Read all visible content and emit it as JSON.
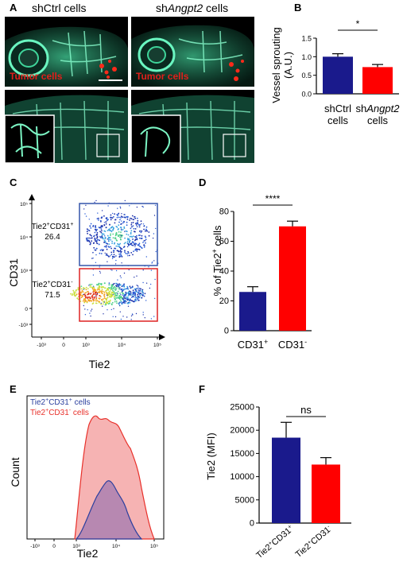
{
  "panels": {
    "a": "A",
    "b": "B",
    "c": "C",
    "d": "D",
    "e": "E",
    "f": "F"
  },
  "panelA": {
    "col_left": "shCtrl cells",
    "col_right_prefix": "sh",
    "col_right_gene": "Angpt2",
    "col_right_suffix": " cells",
    "tumor_label": "Tumor cells",
    "colors": {
      "vessel": "#3fe3a6",
      "tumor": "#e0201b",
      "background": "#000000"
    }
  },
  "chart_data": [
    {
      "id": "B",
      "type": "bar",
      "categories": [
        "shCtrl cells",
        "shAngpt2 cells"
      ],
      "category_lines": [
        [
          "shCtrl",
          "cells"
        ],
        [
          "shAngpt2",
          "cells"
        ]
      ],
      "values": [
        1.0,
        0.72
      ],
      "errors": [
        0.08,
        0.07
      ],
      "colors": [
        "#1a1a8c",
        "#ff0000"
      ],
      "ylabel_lines": [
        "Vessel sprouting",
        "(A.U.)"
      ],
      "ylim": [
        0,
        1.5
      ],
      "yticks": [
        "0.0",
        "0.5",
        "1.0",
        "1.5"
      ],
      "significance": "*"
    },
    {
      "id": "C",
      "type": "scatter",
      "xlabel": "Tie2",
      "ylabel": "CD31",
      "xticks": [
        "-10³",
        "0",
        "10³",
        "10⁴",
        "10⁵"
      ],
      "yticks": [
        "10⁵",
        "10⁴",
        "10³",
        "0",
        "-10³"
      ],
      "gates": [
        {
          "name_main": "Tie2",
          "name_sup1": "+",
          "name_mid": "CD31",
          "name_sup2": "+",
          "percent": "26.4",
          "color": "#3355aa"
        },
        {
          "name_main": "Tie2",
          "name_sup1": "+",
          "name_mid": "CD31",
          "name_sup2": "-",
          "percent": "71.5",
          "color": "#dd2222"
        }
      ]
    },
    {
      "id": "D",
      "type": "bar",
      "categories": [
        "CD31+",
        "CD31-"
      ],
      "category_main": [
        "CD31",
        "CD31"
      ],
      "category_sup": [
        "+",
        "-"
      ],
      "values": [
        26,
        70
      ],
      "errors": [
        3.5,
        3.5
      ],
      "colors": [
        "#1a1a8c",
        "#ff0000"
      ],
      "ylabel": "% of Tie2+ cells",
      "ylabel_main": "% of Tie2",
      "ylabel_sup": "+",
      "ylabel_tail": " cells",
      "ylim": [
        0,
        80
      ],
      "yticks": [
        "0",
        "20",
        "40",
        "60",
        "80"
      ],
      "significance": "****"
    },
    {
      "id": "E",
      "type": "area",
      "xlabel": "Tie2",
      "ylabel": "Count",
      "xticks": [
        "-10³",
        "0",
        "10³",
        "10⁴",
        "10⁵"
      ],
      "series": [
        {
          "name": "Tie2+CD31+ cells",
          "main": "Tie2",
          "sup1": "+",
          "mid": "CD31",
          "sup2": "+",
          "tail": " cells",
          "color": "#2b3f9e"
        },
        {
          "name": "Tie2+CD31- cells",
          "main": "Tie2",
          "sup1": "+",
          "mid": "CD31",
          "sup2": "-",
          "tail": " cells",
          "color": "#e8302a"
        }
      ]
    },
    {
      "id": "F",
      "type": "bar",
      "categories": [
        "Tie2+CD31+",
        "Tie2+CD31-"
      ],
      "category_main": [
        "Tie2",
        "Tie2"
      ],
      "category_sup1": [
        "+",
        "+"
      ],
      "category_mid": [
        "CD31",
        "CD31"
      ],
      "category_sup2": [
        "+",
        "-"
      ],
      "values": [
        18400,
        12600
      ],
      "errors": [
        3300,
        1500
      ],
      "colors": [
        "#1a1a8c",
        "#ff0000"
      ],
      "ylabel": "Tie2 (MFI)",
      "ylim": [
        0,
        25000
      ],
      "yticks": [
        "0",
        "5000",
        "10000",
        "15000",
        "20000",
        "25000"
      ],
      "significance": "ns"
    }
  ]
}
